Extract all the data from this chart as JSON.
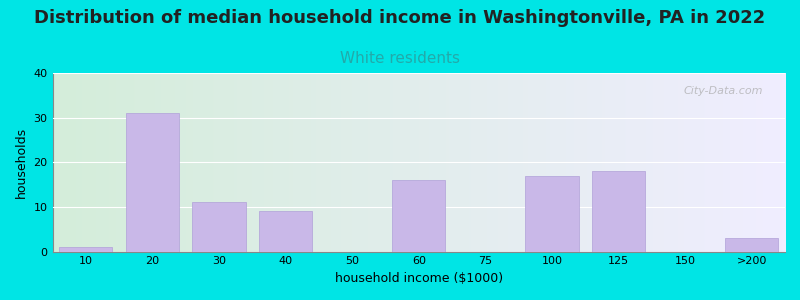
{
  "title": "Distribution of median household income in Washingtonville, PA in 2022",
  "subtitle": "White residents",
  "xlabel": "household income ($1000)",
  "ylabel": "households",
  "title_fontsize": 13,
  "subtitle_fontsize": 11,
  "subtitle_color": "#22aaaa",
  "bar_color": "#c9b8e8",
  "bar_edge_color": "#b0a0d8",
  "background_color": "#00e5e5",
  "plot_bg_left": "#d4edda",
  "plot_bg_right": "#f0eeff",
  "ylim": [
    0,
    40
  ],
  "yticks": [
    0,
    10,
    20,
    30,
    40
  ],
  "categories": [
    "10",
    "20",
    "30",
    "40",
    "50",
    "60",
    "75",
    "100",
    "125",
    "150",
    ">200"
  ],
  "values": [
    1,
    31,
    11,
    9,
    0,
    16,
    0,
    17,
    18,
    0,
    3
  ],
  "watermark": "City-Data.com"
}
